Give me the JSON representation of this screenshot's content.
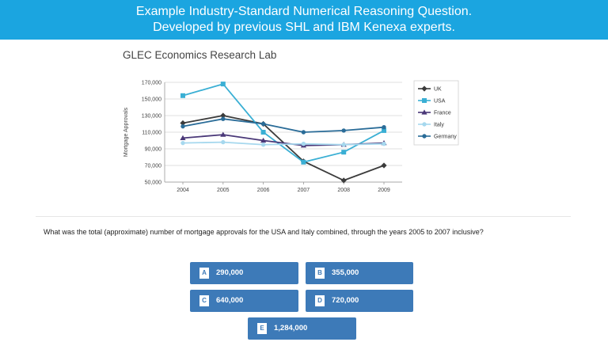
{
  "banner": {
    "line1": "Example Industry-Standard Numerical Reasoning Question.",
    "line2": "Developed by previous SHL and IBM Kenexa experts."
  },
  "org_title": "GLEC Economics Research Lab",
  "question": "What was the total (approximate) number of mortgage approvals for the USA and Italy combined, through the years 2005 to 2007 inclusive?",
  "answers": [
    {
      "letter": "A",
      "value": "290,000"
    },
    {
      "letter": "B",
      "value": "355,000"
    },
    {
      "letter": "C",
      "value": "640,000"
    },
    {
      "letter": "D",
      "value": "720,000"
    },
    {
      "letter": "E",
      "value": "1,284,000"
    }
  ],
  "chart_data": {
    "type": "line",
    "title": "",
    "xlabel": "",
    "ylabel": "Mortgage Approvals",
    "x": [
      "2004",
      "2005",
      "2006",
      "2007",
      "2008",
      "2009"
    ],
    "ylim": [
      50000,
      170000
    ],
    "yticks": [
      "50,000",
      "70,000",
      "90,000",
      "110,000",
      "130,000",
      "150,000",
      "170,000"
    ],
    "grid": true,
    "legend_position": "right",
    "series": [
      {
        "name": "UK",
        "color": "#3b3b3b",
        "marker": "diamond",
        "values": [
          121000,
          130000,
          120000,
          75000,
          52000,
          70000
        ]
      },
      {
        "name": "USA",
        "color": "#3aafd4",
        "marker": "square",
        "values": [
          154000,
          168000,
          110000,
          74000,
          86000,
          112000
        ]
      },
      {
        "name": "France",
        "color": "#4a3878",
        "marker": "triangle",
        "values": [
          103000,
          107000,
          100000,
          94000,
          95000,
          97000
        ]
      },
      {
        "name": "Italy",
        "color": "#a6d8ee",
        "marker": "circle",
        "values": [
          97000,
          98000,
          95000,
          96000,
          95000,
          96000
        ]
      },
      {
        "name": "Germany",
        "color": "#2a6c98",
        "marker": "circle",
        "values": [
          117000,
          126000,
          120000,
          110000,
          112000,
          116000
        ]
      }
    ]
  }
}
